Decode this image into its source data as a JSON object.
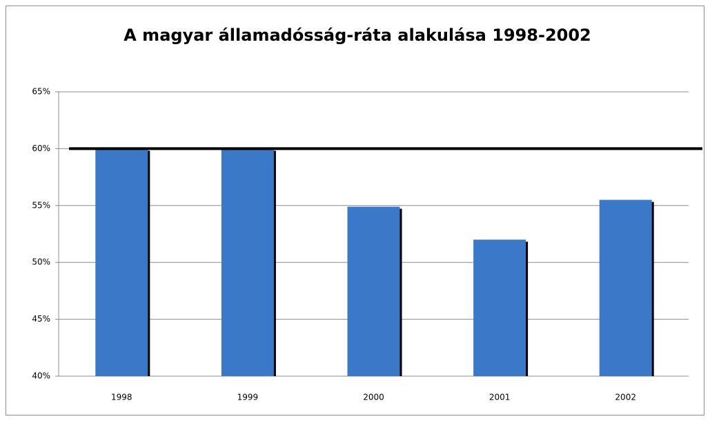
{
  "chart_data": {
    "type": "bar",
    "title": "A magyar államadósság-ráta alakulása 1998-2002",
    "categories": [
      "1998",
      "1999",
      "2000",
      "2001",
      "2002"
    ],
    "values": [
      60.0,
      60.0,
      54.9,
      52.0,
      55.5
    ],
    "color": "#3b78c8",
    "ylim": [
      40,
      65
    ],
    "yticks": [
      {
        "value": 40,
        "label": "40%"
      },
      {
        "value": 45,
        "label": "45%"
      },
      {
        "value": 50,
        "label": "50%"
      },
      {
        "value": 55,
        "label": "55%"
      },
      {
        "value": 60,
        "label": "60%"
      },
      {
        "value": 65,
        "label": "65%"
      }
    ],
    "grid": true,
    "reference_line": {
      "value": 60,
      "color": "#000000"
    }
  }
}
